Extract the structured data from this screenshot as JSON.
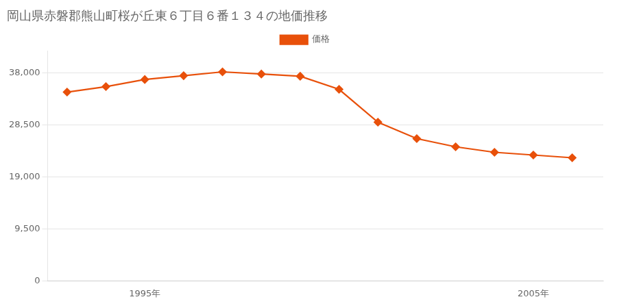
{
  "chart_data": {
    "type": "line",
    "title": "岡山県赤磐郡熊山町桜が丘東６丁目６番１３４の地価推移",
    "x": [
      1993,
      1994,
      1995,
      1996,
      1997,
      1998,
      1999,
      2000,
      2001,
      2002,
      2003,
      2004,
      2005,
      2006
    ],
    "series": [
      {
        "name": "価格",
        "color": "#E8500A",
        "marker": "diamond",
        "values": [
          34500,
          35500,
          36800,
          37500,
          38200,
          37800,
          37400,
          35000,
          29000,
          26000,
          24500,
          23500,
          23000,
          22500
        ]
      }
    ],
    "xlim": [
      1992.5,
      2006.8
    ],
    "xticks": [
      {
        "value": 1995,
        "label": "1995年"
      },
      {
        "value": 2005,
        "label": "2005年"
      }
    ],
    "ylim": [
      0,
      42000
    ],
    "yticks": [
      0,
      {
        "value": 9500,
        "label": "9,500"
      },
      {
        "value": 19000,
        "label": "19,000"
      },
      {
        "value": 28500,
        "label": "28,500"
      },
      {
        "value": 38000,
        "label": "38,000"
      }
    ],
    "grid": "y",
    "legend": "top"
  }
}
